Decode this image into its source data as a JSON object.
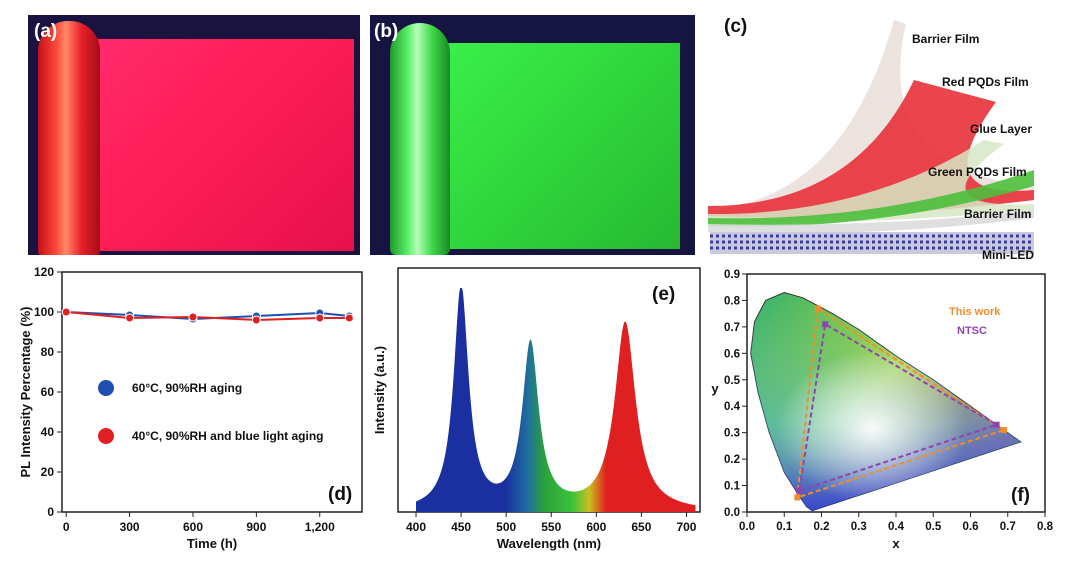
{
  "panels": {
    "a": {
      "label": "(a)"
    },
    "b": {
      "label": "(b)"
    },
    "c": {
      "label": "(c)",
      "layers": [
        "Barrier Film",
        "Red PQDs Film",
        "Glue Layer",
        "Green PQDs Film",
        "Barrier Film",
        "Mini-LED"
      ]
    },
    "d": {
      "label": "(d)"
    },
    "e": {
      "label": "(e)"
    },
    "f": {
      "label": "(f)"
    }
  },
  "colors": {
    "series_blue": "#1f4fb0",
    "series_red": "#e02020",
    "this_work": "#f28c28",
    "ntsc": "#8e44ad"
  },
  "chart_data": [
    {
      "type": "line",
      "panel": "d",
      "xlabel": "Time (h)",
      "ylabel": "PL Intensity Percentage (%)",
      "xlim": [
        -20,
        1400
      ],
      "ylim": [
        0,
        120
      ],
      "xticks": [
        0,
        300,
        600,
        900,
        1200
      ],
      "xtick_labels": [
        "0",
        "300",
        "600",
        "900",
        "1,200"
      ],
      "yticks": [
        0,
        20,
        40,
        60,
        80,
        100,
        120
      ],
      "series": [
        {
          "name": "60°C, 90%RH aging",
          "color": "#1f4fb0",
          "x": [
            0,
            300,
            600,
            900,
            1200,
            1340
          ],
          "y": [
            100,
            98.5,
            96.5,
            98,
            99.5,
            98
          ]
        },
        {
          "name": "40°C, 90%RH and blue light aging",
          "color": "#e02020",
          "x": [
            0,
            300,
            600,
            900,
            1200,
            1340
          ],
          "y": [
            100,
            97,
            97.5,
            96,
            97,
            97
          ]
        }
      ]
    },
    {
      "type": "area",
      "panel": "e",
      "xlabel": "Wavelength (nm)",
      "ylabel": "Intensity (a.u.)",
      "xlim": [
        380,
        715
      ],
      "xticks": [
        400,
        450,
        500,
        550,
        600,
        650,
        700
      ],
      "peaks": [
        {
          "center": 450,
          "height": 1.0,
          "fwhm": 20
        },
        {
          "center": 527,
          "height": 0.74,
          "fwhm": 22
        },
        {
          "center": 632,
          "height": 0.84,
          "fwhm": 28
        }
      ]
    },
    {
      "type": "scatter",
      "panel": "f",
      "xlabel": "x",
      "ylabel": "y",
      "xlim": [
        0,
        0.8
      ],
      "ylim": [
        0,
        0.9
      ],
      "xticks": [
        "0.0",
        "0.1",
        "0.2",
        "0.3",
        "0.4",
        "0.5",
        "0.6",
        "0.7",
        "0.8"
      ],
      "yticks": [
        "0.0",
        "0.1",
        "0.2",
        "0.3",
        "0.4",
        "0.5",
        "0.6",
        "0.7",
        "0.8",
        "0.9"
      ],
      "series": [
        {
          "name": "This work",
          "color": "#f28c28",
          "points": [
            [
              0.69,
              0.31
            ],
            [
              0.19,
              0.77
            ],
            [
              0.135,
              0.055
            ]
          ]
        },
        {
          "name": "NTSC",
          "color": "#8e44ad",
          "points": [
            [
              0.67,
              0.33
            ],
            [
              0.21,
              0.71
            ],
            [
              0.14,
              0.08
            ]
          ]
        }
      ]
    }
  ]
}
